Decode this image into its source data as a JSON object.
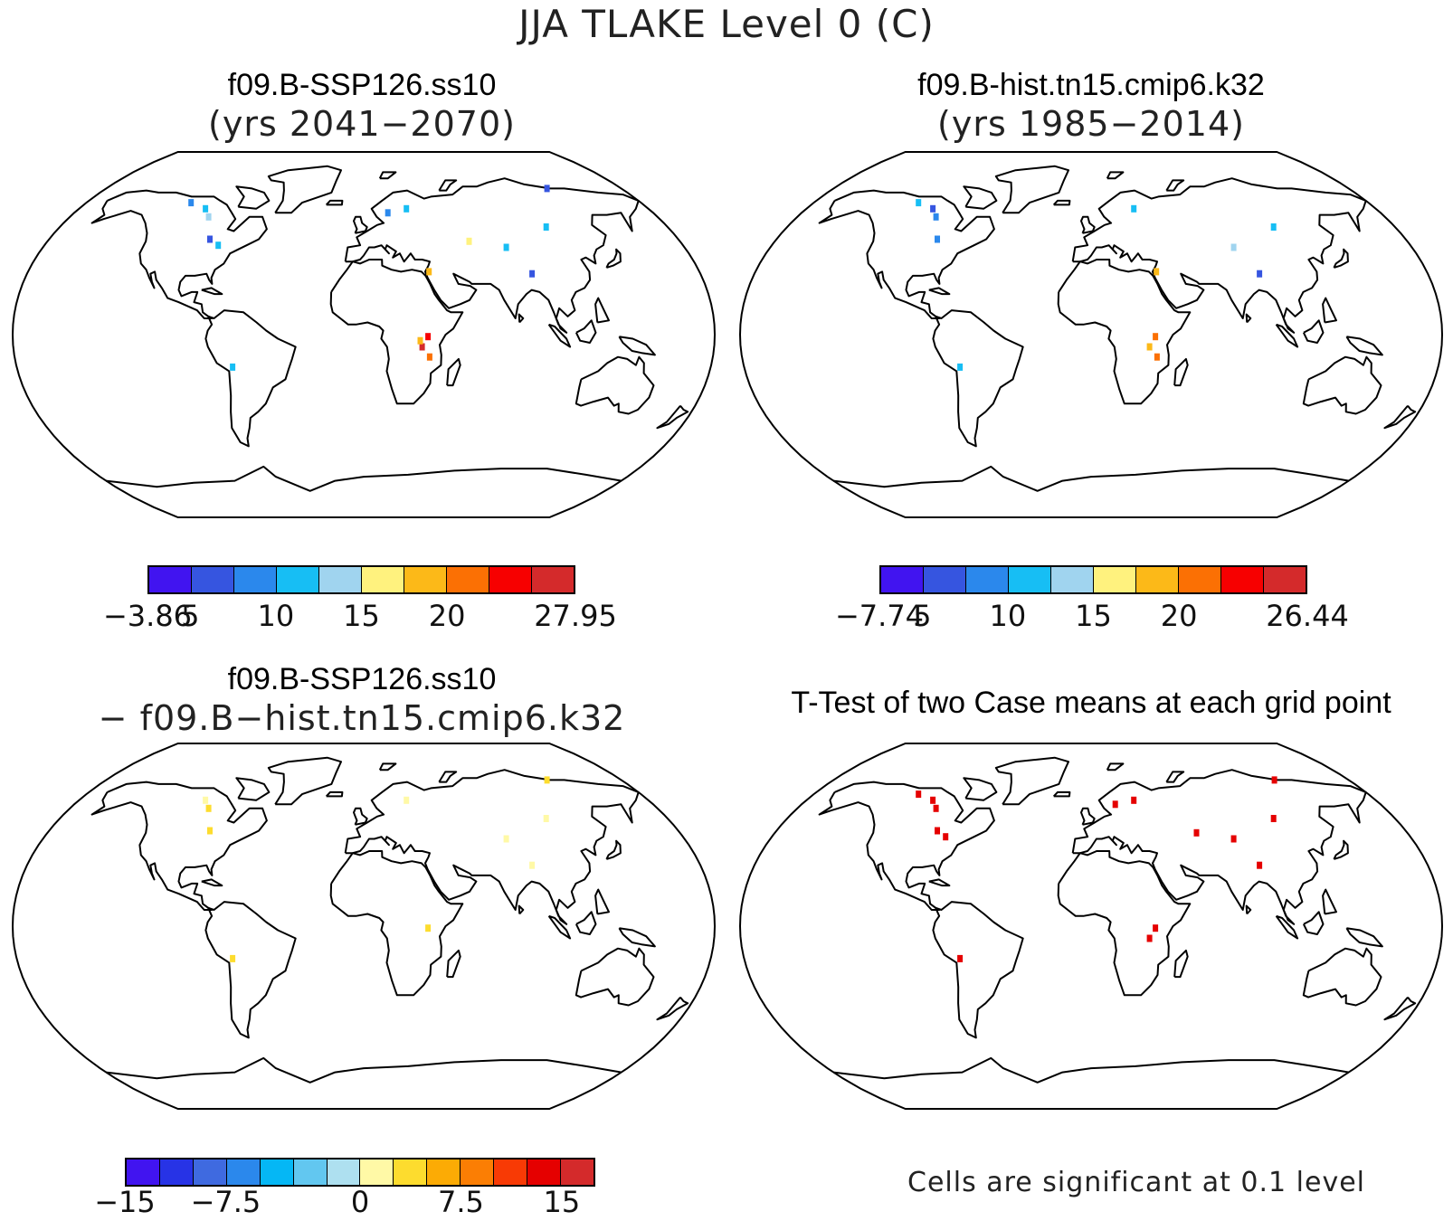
{
  "figure_title": "JJA TLAKE Level 0 (C)",
  "panels": [
    {
      "id": "ssp",
      "title": "f09.B-SSP126.ss10",
      "subtitle": "(yrs 2041−2070)",
      "colorbar": {
        "colors": [
          "#4114f0",
          "#3655e0",
          "#2b88ec",
          "#17bef4",
          "#a0d4ef",
          "#fff27e",
          "#fcb918",
          "#fb7004",
          "#f70000",
          "#d42a2b"
        ],
        "ticks": [
          "−3.86",
          "5",
          "10",
          "15",
          "20",
          "27.95"
        ]
      },
      "markers": [
        {
          "lon": 33,
          "lat": -1,
          "color": "#f70000"
        },
        {
          "lon": 30,
          "lat": -6,
          "color": "#d42a2b"
        },
        {
          "lon": 34,
          "lat": -11,
          "color": "#fb7004"
        },
        {
          "lon": 29,
          "lat": -3,
          "color": "#fcb918"
        },
        {
          "lon": -88,
          "lat": 47,
          "color": "#3655e0"
        },
        {
          "lon": -100,
          "lat": 62,
          "color": "#17bef4"
        },
        {
          "lon": -112,
          "lat": 65,
          "color": "#2b88ec"
        },
        {
          "lon": -95,
          "lat": 58,
          "color": "#a0d4ef"
        },
        {
          "lon": -82,
          "lat": 44,
          "color": "#17bef4"
        },
        {
          "lon": 27,
          "lat": 62,
          "color": "#17bef4"
        },
        {
          "lon": 15,
          "lat": 60,
          "color": "#2b88ec"
        },
        {
          "lon": 108,
          "lat": 53,
          "color": "#17bef4"
        },
        {
          "lon": 80,
          "lat": 43,
          "color": "#17bef4"
        },
        {
          "lon": 60,
          "lat": 46,
          "color": "#fff27e"
        },
        {
          "lon": 90,
          "lat": 30,
          "color": "#3655e0"
        },
        {
          "lon": 128,
          "lat": 72,
          "color": "#3655e0"
        },
        {
          "lon": 35,
          "lat": 31,
          "color": "#fcb918"
        },
        {
          "lon": -68,
          "lat": -16,
          "color": "#17bef4"
        }
      ]
    },
    {
      "id": "hist",
      "title": "f09.B-hist.tn15.cmip6.k32",
      "subtitle": "(yrs 1985−2014)",
      "colorbar": {
        "colors": [
          "#4114f0",
          "#3655e0",
          "#2b88ec",
          "#17bef4",
          "#a0d4ef",
          "#fff27e",
          "#fcb918",
          "#fb7004",
          "#f70000",
          "#d42a2b"
        ],
        "ticks": [
          "−7.74",
          "5",
          "10",
          "15",
          "20",
          "26.44"
        ]
      },
      "markers": [
        {
          "lon": 33,
          "lat": -1,
          "color": "#fb7004"
        },
        {
          "lon": 30,
          "lat": -6,
          "color": "#fcb918"
        },
        {
          "lon": 34,
          "lat": -11,
          "color": "#fb7004"
        },
        {
          "lon": -88,
          "lat": 47,
          "color": "#2b88ec"
        },
        {
          "lon": -100,
          "lat": 62,
          "color": "#3655e0"
        },
        {
          "lon": -112,
          "lat": 65,
          "color": "#17bef4"
        },
        {
          "lon": -95,
          "lat": 58,
          "color": "#2b88ec"
        },
        {
          "lon": 27,
          "lat": 62,
          "color": "#17bef4"
        },
        {
          "lon": 108,
          "lat": 53,
          "color": "#17bef4"
        },
        {
          "lon": 80,
          "lat": 43,
          "color": "#a0d4ef"
        },
        {
          "lon": 90,
          "lat": 30,
          "color": "#3655e0"
        },
        {
          "lon": 35,
          "lat": 31,
          "color": "#fcb918"
        },
        {
          "lon": -68,
          "lat": -16,
          "color": "#17bef4"
        }
      ]
    },
    {
      "id": "diff",
      "title": "f09.B-SSP126.ss10",
      "subtitle": "− f09.B−hist.tn15.cmip6.k32",
      "colorbar": {
        "colors": [
          "#4114f0",
          "#2733e6",
          "#3f6ae0",
          "#2b88ec",
          "#05b7f5",
          "#62c7f0",
          "#aee0f0",
          "#fff9a6",
          "#fddc2e",
          "#fcab05",
          "#fb7e04",
          "#f83a05",
          "#e50000",
          "#d42a2b"
        ],
        "ticks": [
          "−15",
          "−7.5",
          "0",
          "7.5",
          "15"
        ]
      },
      "markers": [
        {
          "lon": 33,
          "lat": -1,
          "color": "#fddc2e"
        },
        {
          "lon": -95,
          "lat": 58,
          "color": "#fddc2e"
        },
        {
          "lon": -100,
          "lat": 62,
          "color": "#fff9a6"
        },
        {
          "lon": -88,
          "lat": 47,
          "color": "#fddc2e"
        },
        {
          "lon": 27,
          "lat": 62,
          "color": "#fff9a6"
        },
        {
          "lon": 80,
          "lat": 43,
          "color": "#fff9a6"
        },
        {
          "lon": 108,
          "lat": 53,
          "color": "#fff9a6"
        },
        {
          "lon": 90,
          "lat": 30,
          "color": "#fff9a6"
        },
        {
          "lon": 128,
          "lat": 72,
          "color": "#fddc2e"
        },
        {
          "lon": -68,
          "lat": -16,
          "color": "#fddc2e"
        }
      ]
    },
    {
      "id": "ttest",
      "title": "T-Test of two Case means at each grid point",
      "subtitle": "",
      "note": "Cells are significant at 0.1 level",
      "markers": [
        {
          "lon": 33,
          "lat": -1,
          "color": "#e50000"
        },
        {
          "lon": 30,
          "lat": -6,
          "color": "#e50000"
        },
        {
          "lon": -95,
          "lat": 58,
          "color": "#e50000"
        },
        {
          "lon": -100,
          "lat": 62,
          "color": "#e50000"
        },
        {
          "lon": -112,
          "lat": 65,
          "color": "#e50000"
        },
        {
          "lon": -88,
          "lat": 47,
          "color": "#e50000"
        },
        {
          "lon": -82,
          "lat": 44,
          "color": "#e50000"
        },
        {
          "lon": 27,
          "lat": 62,
          "color": "#e50000"
        },
        {
          "lon": 15,
          "lat": 60,
          "color": "#e50000"
        },
        {
          "lon": 80,
          "lat": 43,
          "color": "#e50000"
        },
        {
          "lon": 60,
          "lat": 46,
          "color": "#e50000"
        },
        {
          "lon": 108,
          "lat": 53,
          "color": "#e50000"
        },
        {
          "lon": 90,
          "lat": 30,
          "color": "#e50000"
        },
        {
          "lon": 128,
          "lat": 72,
          "color": "#e50000"
        },
        {
          "lon": -68,
          "lat": -16,
          "color": "#e50000"
        }
      ]
    }
  ]
}
